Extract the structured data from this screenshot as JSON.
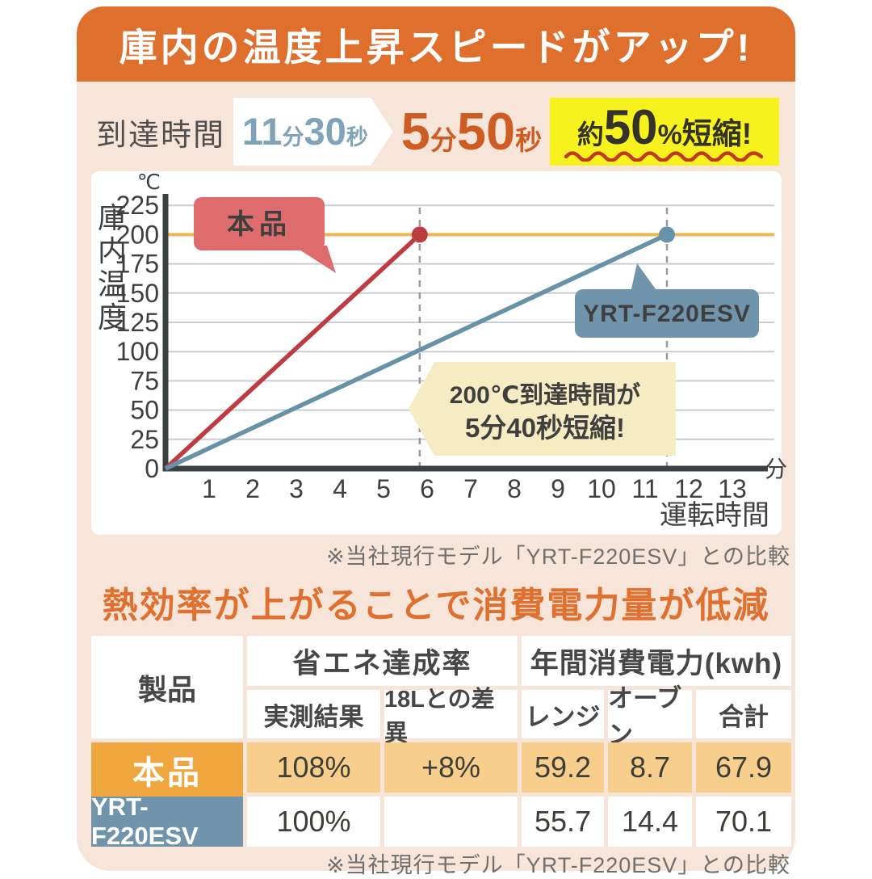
{
  "banner": {
    "title": "庫内の温度上昇スピードがアップ!"
  },
  "reach_time": {
    "label": "到達時間",
    "before": {
      "num1": "11",
      "unit1": "分",
      "num2": "30",
      "unit2": "秒"
    },
    "after": {
      "num1": "5",
      "unit1": "分",
      "num2": "50",
      "unit2": "秒"
    },
    "badge": {
      "prefix": "約",
      "value": "50",
      "percent": "%",
      "suffix": "短縮!"
    }
  },
  "chart_data": {
    "type": "line",
    "title": "",
    "ylabel": "庫内温度",
    "y_unit": "℃",
    "x_unit": "分",
    "xlabel": "運転時間",
    "ylim": [
      0,
      237
    ],
    "xlim": [
      0,
      13.5
    ],
    "y_ticks": [
      0,
      25,
      50,
      75,
      100,
      125,
      150,
      175,
      200,
      225
    ],
    "x_ticks": [
      1,
      2,
      3,
      4,
      5,
      6,
      7,
      8,
      9,
      10,
      11,
      12,
      13
    ],
    "grid": true,
    "target_temp_line": 200,
    "series": [
      {
        "name": "本品",
        "color": "#BC3C42",
        "points": [
          [
            0,
            0
          ],
          [
            5.83,
            200
          ]
        ],
        "label_bubble": "本品"
      },
      {
        "name": "YRT-F220ESV",
        "color": "#6792A8",
        "points": [
          [
            0,
            0
          ],
          [
            11.5,
            200
          ]
        ],
        "label_bubble": "YRT-F220ESV"
      }
    ],
    "dashed_x": [
      5.83,
      11.5
    ],
    "annotation": {
      "line1": "200℃到達時間が",
      "line2": "5分40秒短縮!"
    }
  },
  "chart_note": "※当社現行モデル「YRT-F220ESV」との比較",
  "section2": {
    "heading": "熱効率が上がることで消費電力量が低減"
  },
  "table": {
    "col_product": "製品",
    "group1": "省エネ達成率",
    "group2": "年間消費電力(kwh)",
    "sub_headers": [
      "実測結果",
      "18Lとの差異",
      "レンジ",
      "オーブン",
      "合計"
    ],
    "rows": [
      {
        "product": "本品",
        "values": [
          "108%",
          "+8%",
          "59.2",
          "8.7",
          "67.9"
        ],
        "highlight": true
      },
      {
        "product": "YRT-F220ESV",
        "values": [
          "100%",
          "",
          "55.7",
          "14.4",
          "70.1"
        ],
        "highlight": false
      }
    ]
  },
  "table_note": "※当社現行モデル「YRT-F220ESV」との比較",
  "colors": {
    "banner_bg": "#DF6F2D",
    "body_bg": "#F8E5DA",
    "accent_orange_text": "#E0702F",
    "after_time_text": "#CE5D24",
    "before_time_text": "#7FA3B8",
    "badge_bg": "#F7F21D",
    "badge_wave": "#C23A1D",
    "product_line": "#BC3C42",
    "compare_line": "#6792A8",
    "target_line": "#EFB54F",
    "product_row_bg": "#F0A63F",
    "product_cells_bg": "#F8CE8C",
    "compare_row_bg": "#6F94AC",
    "annotation_bg": "#F6ECC3"
  }
}
